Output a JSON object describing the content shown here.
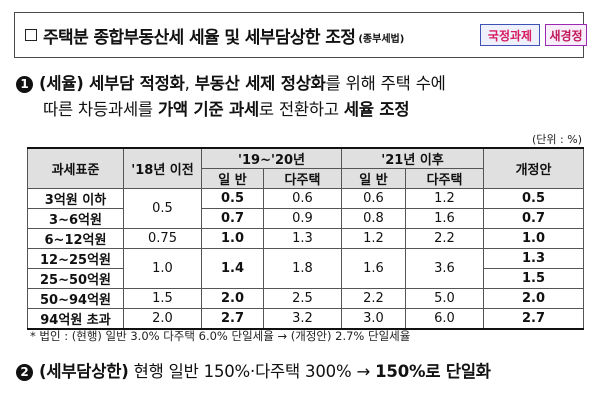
{
  "header": {
    "title": "주택분 종합부동산세 세율 및 세부담상한 조정",
    "title_sub": "(종부세법)",
    "badge1": "국정과제",
    "badge2": "새경정"
  },
  "section1": {
    "number": "1",
    "l1_a": "(세율) 세부담 적정화",
    "l1_b": ", ",
    "l1_c": "부동산 세제 정상화",
    "l1_d": "를 위해 주택 수에",
    "l2_a": "따른 차등과세를 ",
    "l2_b": "가액 기준 과세",
    "l2_c": "로 전환하고 ",
    "l2_d": "세율 조정"
  },
  "unit_label": "(단위 : %)",
  "table": {
    "headers": {
      "col1": "과세표준",
      "col2": "'18년 이전",
      "group1": "'19~'20년",
      "group2": "'21년 이후",
      "col_last": "개정안",
      "sub_general": "일  반",
      "sub_multi": "다주택"
    },
    "rows": [
      {
        "bracket": "3억원 이하",
        "pre18": "0.5",
        "y19_gen": "0.5",
        "y19_multi": "0.6",
        "y21_gen": "0.6",
        "y21_multi": "1.2",
        "revised": "0.5"
      },
      {
        "bracket": "3~6억원",
        "y19_gen": "0.7",
        "y19_multi": "0.9",
        "y21_gen": "0.8",
        "y21_multi": "1.6",
        "revised": "0.7"
      },
      {
        "bracket": "6~12억원",
        "pre18": "0.75",
        "y19_gen": "1.0",
        "y19_multi": "1.3",
        "y21_gen": "1.2",
        "y21_multi": "2.2",
        "revised": "1.0"
      },
      {
        "bracket": "12~25억원",
        "pre18": "1.0",
        "y19_gen": "1.4",
        "y19_multi": "1.8",
        "y21_gen": "1.6",
        "y21_multi": "3.6",
        "revised": "1.3"
      },
      {
        "bracket": "25~50억원",
        "revised": "1.5"
      },
      {
        "bracket": "50~94억원",
        "pre18": "1.5",
        "y19_gen": "2.0",
        "y19_multi": "2.5",
        "y21_gen": "2.2",
        "y21_multi": "5.0",
        "revised": "2.0"
      },
      {
        "bracket": "94억원 초과",
        "pre18": "2.0",
        "y19_gen": "2.7",
        "y19_multi": "3.2",
        "y21_gen": "3.0",
        "y21_multi": "6.0",
        "revised": "2.7"
      }
    ]
  },
  "note": "* 법인 : (현행) 일반 3.0% 다주택 6.0% 단일세율 → (개정안) 2.7% 단일세율",
  "section2": {
    "number": "2",
    "a": "(세부담상한)",
    "b": " 현행 일반 150%·다주택 300% → ",
    "c": "150%로 단일화"
  }
}
